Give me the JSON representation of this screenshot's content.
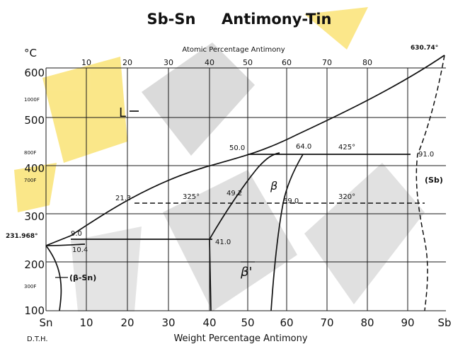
{
  "title": "Sb-Sn     Antimony-Tin",
  "top_axis_label": "Atomic Percentage Antimony",
  "top_ticks": [
    "10",
    "20",
    "30",
    "40",
    "50",
    "60",
    "70",
    "80"
  ],
  "bottom_axis_label": "Weight Percentage Antimony",
  "bottom_ticks": [
    "Sn",
    "10",
    "20",
    "30",
    "40",
    "50",
    "60",
    "70",
    "80",
    "90",
    "Sb"
  ],
  "credit": "D.T.H.",
  "y_unit_c": "°C",
  "y_ticks_c": [
    "600",
    "500",
    "400",
    "300",
    "200",
    "100"
  ],
  "y_ticks_f": [
    "1000F",
    "800F",
    "700F",
    "300F"
  ],
  "labels": {
    "liquid": "L",
    "sb_melt": "630.74°",
    "sn_melt": "231.968°",
    "t425": "425°",
    "t325": "325°",
    "t320": "320°",
    "c500": "50.0",
    "c640": "64.0",
    "c910": "91.0",
    "c213": "21.3",
    "c492": "49.2",
    "c590": "59.0",
    "c90": "9.0",
    "c104": "10.4",
    "c410": "41.0",
    "beta": "β",
    "beta_prime": "β'",
    "beta_sn": "(β-Sn)",
    "sb_phase": "(Sb)"
  },
  "colors": {
    "line": "#111111",
    "watermark_gray": "#b8b8b8",
    "watermark_yellow": "#f6d21c"
  }
}
